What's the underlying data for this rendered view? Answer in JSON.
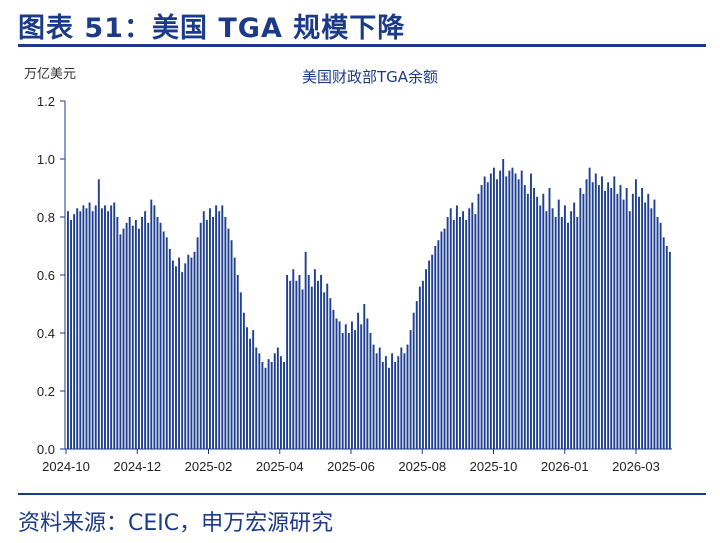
{
  "figure_title": "图表 51：美国 TGA 规模下降",
  "source": "资料来源：CEIC，申万宏源研究",
  "colors": {
    "accent": "#1c3a8a",
    "bar": "#1f3f91",
    "axis": "#1c3a8a"
  },
  "chart_data": {
    "type": "bar",
    "title": "美国财政部TGA余额",
    "ylabel": "万亿美元",
    "xlabel": "",
    "ylim": [
      0,
      1.2
    ],
    "y_ticks": [
      "0.0",
      "0.2",
      "0.4",
      "0.6",
      "0.8",
      "1.0",
      "1.2"
    ],
    "x_ticks": [
      "2024-10",
      "2024-12",
      "2025-02",
      "2025-04",
      "2025-06",
      "2025-08",
      "2025-10",
      "2026-01",
      "2026-03"
    ],
    "grid": false,
    "legend": "none",
    "values": [
      0.82,
      0.79,
      0.81,
      0.83,
      0.82,
      0.84,
      0.83,
      0.85,
      0.82,
      0.84,
      0.93,
      0.83,
      0.84,
      0.82,
      0.84,
      0.85,
      0.8,
      0.74,
      0.76,
      0.78,
      0.8,
      0.77,
      0.79,
      0.76,
      0.8,
      0.82,
      0.78,
      0.86,
      0.84,
      0.8,
      0.78,
      0.75,
      0.73,
      0.69,
      0.65,
      0.63,
      0.66,
      0.61,
      0.64,
      0.67,
      0.66,
      0.68,
      0.73,
      0.78,
      0.82,
      0.79,
      0.83,
      0.8,
      0.84,
      0.82,
      0.84,
      0.8,
      0.76,
      0.72,
      0.66,
      0.6,
      0.54,
      0.47,
      0.42,
      0.38,
      0.41,
      0.35,
      0.33,
      0.3,
      0.28,
      0.31,
      0.3,
      0.33,
      0.35,
      0.32,
      0.3,
      0.6,
      0.58,
      0.62,
      0.58,
      0.6,
      0.55,
      0.68,
      0.6,
      0.56,
      0.62,
      0.58,
      0.6,
      0.54,
      0.57,
      0.52,
      0.48,
      0.45,
      0.44,
      0.4,
      0.43,
      0.4,
      0.44,
      0.41,
      0.47,
      0.43,
      0.5,
      0.45,
      0.4,
      0.36,
      0.33,
      0.35,
      0.3,
      0.32,
      0.28,
      0.33,
      0.3,
      0.32,
      0.35,
      0.33,
      0.36,
      0.41,
      0.47,
      0.51,
      0.56,
      0.58,
      0.62,
      0.65,
      0.67,
      0.7,
      0.72,
      0.75,
      0.76,
      0.8,
      0.83,
      0.79,
      0.84,
      0.8,
      0.82,
      0.79,
      0.83,
      0.85,
      0.81,
      0.88,
      0.91,
      0.94,
      0.92,
      0.95,
      0.97,
      0.93,
      0.96,
      1.0,
      0.94,
      0.96,
      0.97,
      0.95,
      0.93,
      0.96,
      0.91,
      0.88,
      0.95,
      0.9,
      0.87,
      0.84,
      0.88,
      0.82,
      0.9,
      0.83,
      0.8,
      0.86,
      0.8,
      0.84,
      0.78,
      0.82,
      0.85,
      0.8,
      0.9,
      0.88,
      0.93,
      0.97,
      0.92,
      0.95,
      0.91,
      0.94,
      0.89,
      0.92,
      0.9,
      0.94,
      0.88,
      0.91,
      0.86,
      0.9,
      0.82,
      0.88,
      0.93,
      0.87,
      0.9,
      0.85,
      0.88,
      0.83,
      0.86,
      0.8,
      0.78,
      0.73,
      0.7,
      0.68
    ]
  }
}
